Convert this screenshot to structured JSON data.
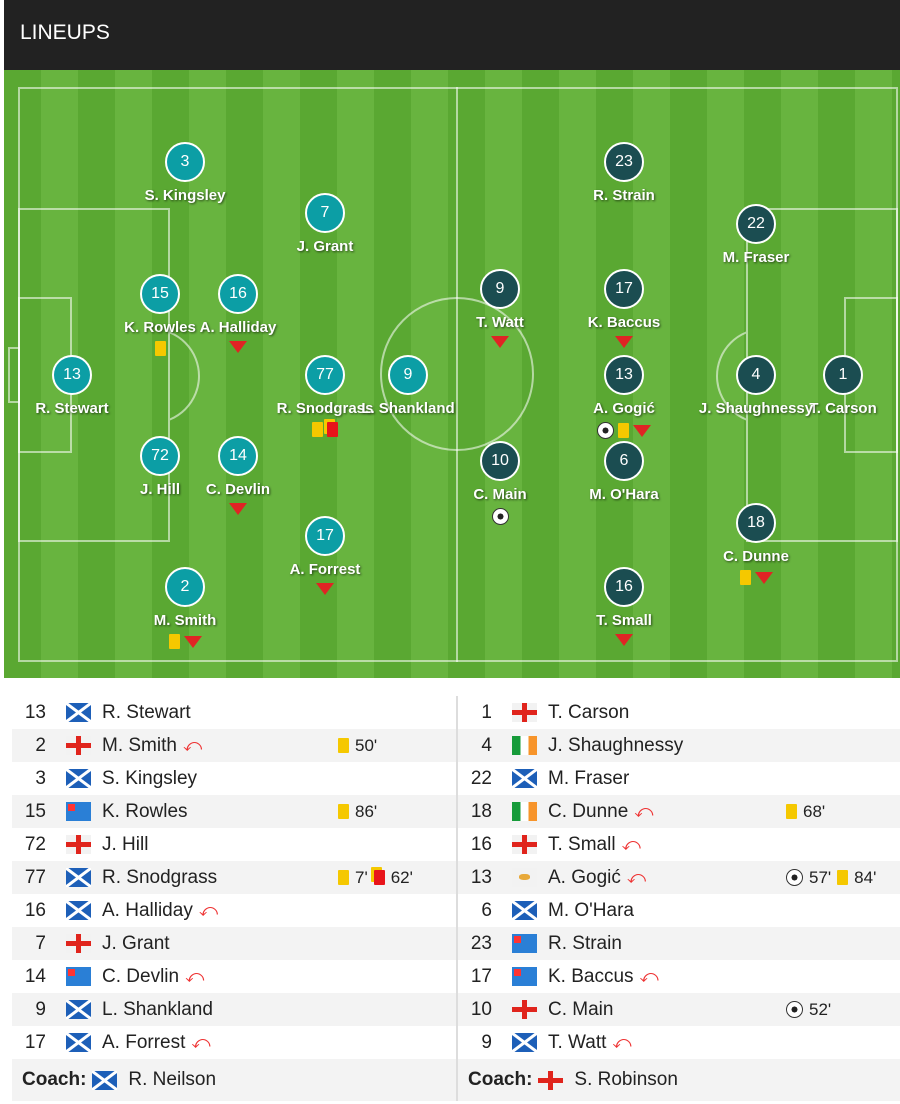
{
  "header": {
    "title": "LINEUPS"
  },
  "colors": {
    "home": "#0c9ea5",
    "away": "#1b4d51",
    "yellow": "#f5c800",
    "red": "#e8141a"
  },
  "home": {
    "players": [
      {
        "num": "13",
        "pitch_name": "R. Stewart",
        "name": "R. Stewart",
        "flag": "scotland",
        "sub": false,
        "events": []
      },
      {
        "num": "2",
        "pitch_name": "M. Smith",
        "name": "M. Smith",
        "flag": "england",
        "sub": true,
        "events": [
          {
            "type": "yellow",
            "min": "50'"
          }
        ]
      },
      {
        "num": "3",
        "pitch_name": "S. Kingsley",
        "name": "S. Kingsley",
        "flag": "scotland",
        "sub": false,
        "events": []
      },
      {
        "num": "15",
        "pitch_name": "K. Rowles",
        "name": "K. Rowles",
        "flag": "australia",
        "sub": false,
        "events": [
          {
            "type": "yellow",
            "min": "86'"
          }
        ]
      },
      {
        "num": "72",
        "pitch_name": "J. Hill",
        "name": "J. Hill",
        "flag": "england",
        "sub": false,
        "events": []
      },
      {
        "num": "77",
        "pitch_name": "R. Snodgrass",
        "name": "R. Snodgrass",
        "flag": "scotland",
        "sub": false,
        "events": [
          {
            "type": "yellow",
            "min": "7'"
          },
          {
            "type": "red",
            "min": "62'"
          }
        ]
      },
      {
        "num": "16",
        "pitch_name": "A. Halliday",
        "name": "A. Halliday",
        "flag": "scotland",
        "sub": true,
        "events": []
      },
      {
        "num": "7",
        "pitch_name": "J. Grant",
        "name": "J. Grant",
        "flag": "england",
        "sub": false,
        "events": []
      },
      {
        "num": "14",
        "pitch_name": "C. Devlin",
        "name": "C. Devlin",
        "flag": "australia",
        "sub": true,
        "events": []
      },
      {
        "num": "9",
        "pitch_name": "L. Shankland",
        "name": "L. Shankland",
        "flag": "scotland",
        "sub": false,
        "events": []
      },
      {
        "num": "17",
        "pitch_name": "A. Forrest",
        "name": "A. Forrest",
        "flag": "scotland",
        "sub": true,
        "events": []
      }
    ],
    "coach_label": "Coach:",
    "coach": "R. Neilson",
    "coach_flag": "scotland"
  },
  "away": {
    "players": [
      {
        "num": "1",
        "pitch_name": "T. Carson",
        "name": "T. Carson",
        "flag": "england",
        "sub": false,
        "events": []
      },
      {
        "num": "4",
        "pitch_name": "J. Shaughnessy",
        "name": "J. Shaughnessy",
        "flag": "ireland",
        "sub": false,
        "events": []
      },
      {
        "num": "22",
        "pitch_name": "M. Fraser",
        "name": "M. Fraser",
        "flag": "scotland",
        "sub": false,
        "events": []
      },
      {
        "num": "18",
        "pitch_name": "C. Dunne",
        "name": "C. Dunne",
        "flag": "ireland",
        "sub": true,
        "events": [
          {
            "type": "yellow",
            "min": "68'"
          }
        ]
      },
      {
        "num": "16",
        "pitch_name": "T. Small",
        "name": "T. Small",
        "flag": "england",
        "sub": true,
        "events": []
      },
      {
        "num": "13",
        "pitch_name": "A. Gogić",
        "name": "A. Gogić",
        "flag": "cyprus",
        "sub": true,
        "events": [
          {
            "type": "goal",
            "min": "57'"
          },
          {
            "type": "yellow",
            "min": "84'"
          }
        ]
      },
      {
        "num": "6",
        "pitch_name": "M. O'Hara",
        "name": "M. O'Hara",
        "flag": "scotland",
        "sub": false,
        "events": []
      },
      {
        "num": "23",
        "pitch_name": "R. Strain",
        "name": "R. Strain",
        "flag": "australia",
        "sub": false,
        "events": []
      },
      {
        "num": "17",
        "pitch_name": "K. Baccus",
        "name": "K. Baccus",
        "flag": "australia",
        "sub": true,
        "events": []
      },
      {
        "num": "10",
        "pitch_name": "C. Main",
        "name": "C. Main",
        "flag": "england",
        "sub": false,
        "events": [
          {
            "type": "goal",
            "min": "52'"
          }
        ]
      },
      {
        "num": "9",
        "pitch_name": "T. Watt",
        "name": "T. Watt",
        "flag": "scotland",
        "sub": true,
        "events": []
      }
    ],
    "coach_label": "Coach:",
    "coach": "S. Robinson",
    "coach_flag": "england"
  }
}
